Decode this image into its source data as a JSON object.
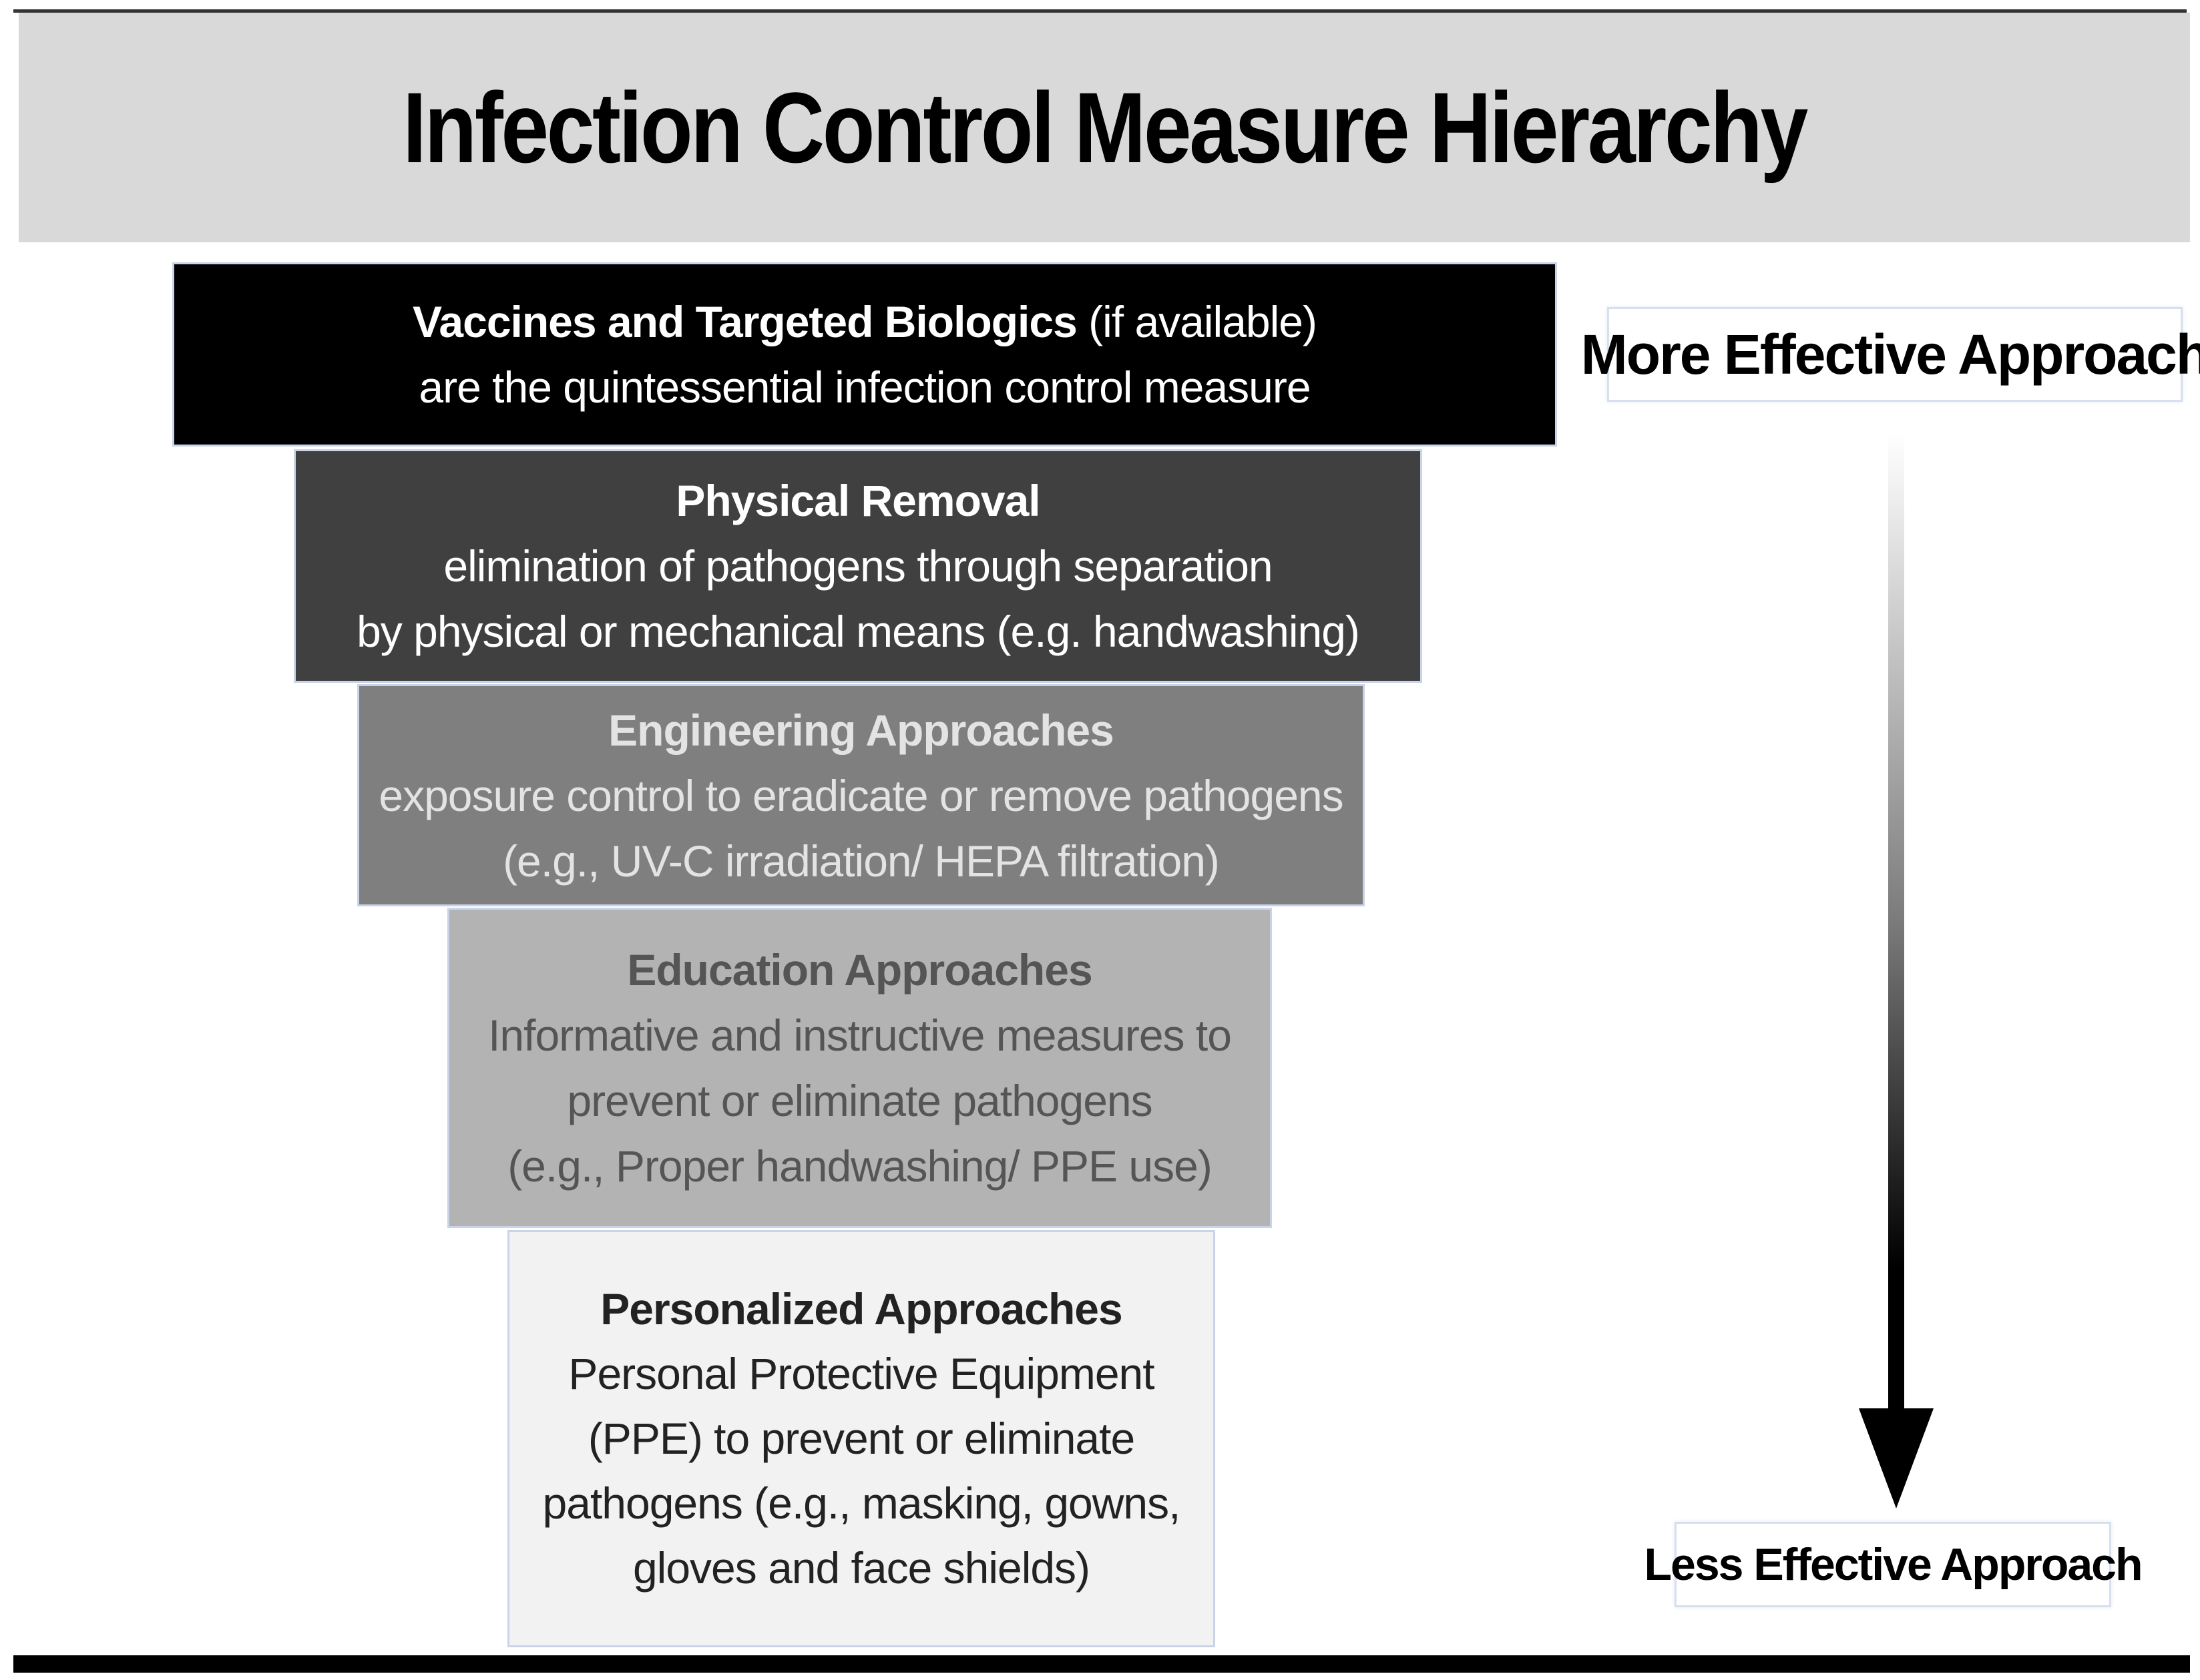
{
  "title": "Infection Control Measure Hierarchy",
  "tiers": [
    {
      "lines": [
        {
          "bold": "Vaccines and Targeted  Biologics",
          "rest": " (if available)"
        },
        {
          "text": "are the quintessential infection control measure"
        }
      ],
      "fill": "#000000",
      "text_color": "#ffffff"
    },
    {
      "heading": "Physical Removal",
      "lines": [
        "elimination of pathogens through separation",
        "by physical or mechanical means (e.g. handwashing)"
      ],
      "fill": "#404040",
      "text_color": "#ffffff"
    },
    {
      "heading": "Engineering Approaches",
      "lines": [
        "exposure control to eradicate or remove pathogens",
        "(e.g., UV-C irradiation/ HEPA filtration)"
      ],
      "fill": "#7f7f7f",
      "text_color": "#e3e3e3"
    },
    {
      "heading": "Education Approaches",
      "lines": [
        "Informative and instructive measures to",
        "prevent or eliminate  pathogens",
        "(e.g., Proper handwashing/ PPE use)"
      ],
      "fill": "#b3b3b3",
      "text_color": "#555555"
    },
    {
      "heading": "Personalized Approaches",
      "lines": [
        "Personal Protective Equipment",
        "(PPE) to prevent or eliminate",
        "pathogens (e.g., masking, gowns,",
        "gloves and face shields)"
      ],
      "fill": "#f2f2f2",
      "text_color": "#222222"
    }
  ],
  "scale": {
    "top_label": "More Effective Approach",
    "bottom_label": "Less Effective Approach",
    "arrow_icon": "down-arrow-gradient-icon"
  }
}
